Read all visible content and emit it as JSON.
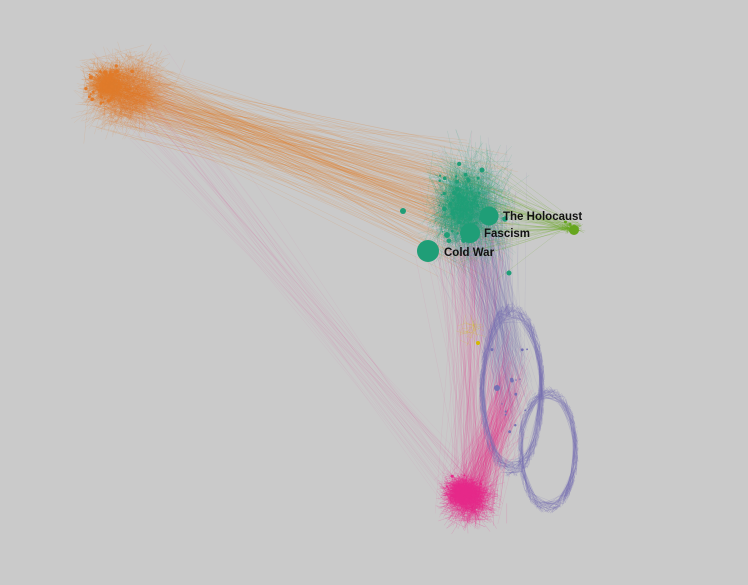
{
  "graph": {
    "colors": {
      "background": "#cacaca",
      "cluster_orange": "#e07b2a",
      "cluster_teal": "#1f9e77",
      "cluster_lime": "#66a61e",
      "cluster_purple": "#7570b3",
      "cluster_pink": "#e7298a",
      "cluster_yellow": "#d4b800"
    },
    "labeled_nodes": [
      {
        "id": "cold-war",
        "label": "Cold War",
        "cluster": "cluster_teal"
      },
      {
        "id": "fascism",
        "label": "Fascism",
        "cluster": "cluster_teal"
      },
      {
        "id": "the-holocaust",
        "label": "The Holocaust",
        "cluster": "cluster_teal"
      }
    ]
  }
}
